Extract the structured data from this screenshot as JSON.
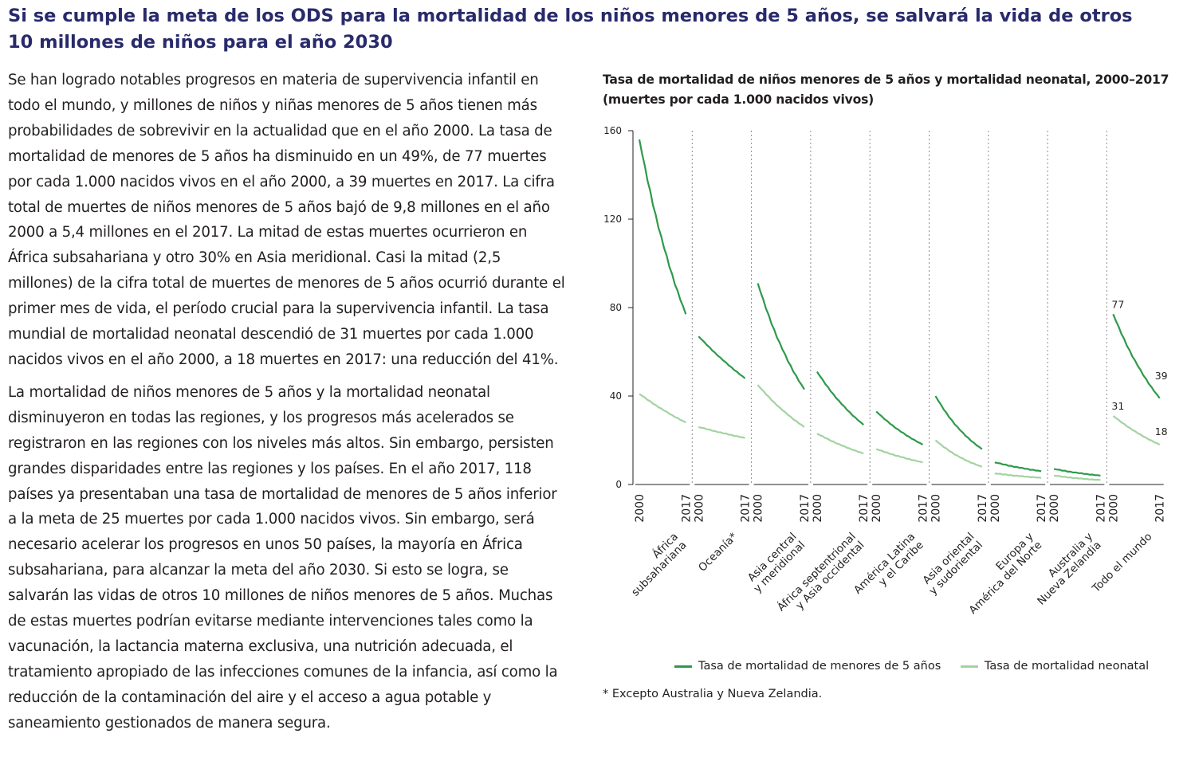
{
  "headline": "Si se cumple la meta de los ODS para la mortalidad de los niños menores de 5 años, se salvará la vida de otros 10 millones de niños para el año 2030",
  "article": {
    "paragraphs": [
      "Se han logrado notables progresos en materia de supervivencia infantil en todo el mundo, y millones de niños y niñas menores de 5 años tienen más probabilidades de sobrevivir en la actualidad que en el año 2000. La tasa de mortalidad de menores de 5 años ha disminuido en un 49%, de 77 muertes por cada 1.000 nacidos vivos en el año 2000, a 39 muertes en 2017. La cifra total de muertes de niños menores de 5 años bajó de 9,8 millones en el año 2000 a 5,4 millones en el 2017. La mitad de estas muertes ocurrieron en África subsahariana y otro 30% en Asia meridional. Casi la mitad (2,5 millones) de la cifra total de muertes de menores de 5 años ocurrió durante el primer mes de vida, el período crucial para la supervivencia infantil. La tasa mundial de mortalidad neonatal descendió de 31 muertes por cada 1.000 nacidos vivos en el año 2000, a 18 muertes en 2017: una reducción del 41%.",
      "La mortalidad de niños menores de 5 años y la mortalidad neonatal disminuyeron en todas las regiones, y los progresos más acelerados se registraron en las regiones con los niveles más altos. Sin embargo, persisten grandes disparidades entre las regiones y los países. En el año 2017, 118 países ya presentaban una tasa de mortalidad de menores de 5 años inferior a la meta de 25 muertes por cada 1.000 nacidos vivos. Sin embargo, será necesario acelerar los progresos en unos 50 países, la mayoría en África subsahariana, para alcanzar la meta del año 2030. Si esto se logra, se salvarán las vidas de otros 10 millones de niños menores de 5 años. Muchas de estas muertes podrían evitarse mediante intervenciones tales como la vacunación, la lactancia materna exclusiva, una nutrición adecuada, el tratamiento apropiado de las infecciones comunes de la infancia, así como la reducción de la contaminación del aire y el acceso a agua potable y saneamiento gestionados de manera segura."
    ]
  },
  "footnote": "* Excepto Australia y Nueva Zelandia.",
  "colors": {
    "under5": "#2e9a4a",
    "neonatal": "#a3d3a0",
    "axis": "#231f20",
    "divider": "#8a8a8a",
    "headline": "#282a6b"
  },
  "chart_data": {
    "type": "line",
    "title": "Tasa de mortalidad de niños menores de 5 años y mortalidad neonatal, 2000–2017 (muertes por cada 1.000 nacidos vivos)",
    "ylim": [
      0,
      160
    ],
    "yticks": [
      0,
      40,
      80,
      120,
      160
    ],
    "year_start_label": "2000",
    "year_end_label": "2017",
    "legend": [
      "Tasa de mortalidad de menores de 5 años",
      "Tasa de mortalidad neonatal"
    ],
    "panels": [
      {
        "name": "África subsahariana",
        "label_lines": [
          "África",
          "subsahariana"
        ],
        "under5": [
          156,
          77
        ],
        "neonatal": [
          41,
          28
        ]
      },
      {
        "name": "Oceanía*",
        "label_lines": [
          "Oceanía*"
        ],
        "under5": [
          67,
          48
        ],
        "neonatal": [
          26,
          21
        ]
      },
      {
        "name": "Asia central y meridional",
        "label_lines": [
          "Asia central",
          "y meridional"
        ],
        "under5": [
          91,
          43
        ],
        "neonatal": [
          45,
          26
        ]
      },
      {
        "name": "África septentrional y Asia occidental",
        "label_lines": [
          "África septentrional",
          "y Asia occidental"
        ],
        "under5": [
          51,
          27
        ],
        "neonatal": [
          23,
          14
        ]
      },
      {
        "name": "América Latina y el Caribe",
        "label_lines": [
          "América Latina",
          "y el Caribe"
        ],
        "under5": [
          33,
          18
        ],
        "neonatal": [
          16,
          10
        ]
      },
      {
        "name": "Asia oriental y sudoriental",
        "label_lines": [
          "Asia oriental",
          "y sudoriental"
        ],
        "under5": [
          40,
          16
        ],
        "neonatal": [
          20,
          8
        ]
      },
      {
        "name": "Europa y América del Norte",
        "label_lines": [
          "Europa y",
          "América del Norte"
        ],
        "under5": [
          10,
          6
        ],
        "neonatal": [
          5,
          3
        ]
      },
      {
        "name": "Australia y Nueva Zelandia",
        "label_lines": [
          "Australia y",
          "Nueva Zelandia"
        ],
        "under5": [
          7,
          4
        ],
        "neonatal": [
          4,
          2
        ]
      },
      {
        "name": "Todo el mundo",
        "label_lines": [
          "Todo el mundo"
        ],
        "under5": [
          77,
          39
        ],
        "neonatal": [
          31,
          18
        ],
        "labels": {
          "u5_start": "77",
          "u5_end": "39",
          "neo_start": "31",
          "neo_end": "18"
        }
      }
    ]
  }
}
